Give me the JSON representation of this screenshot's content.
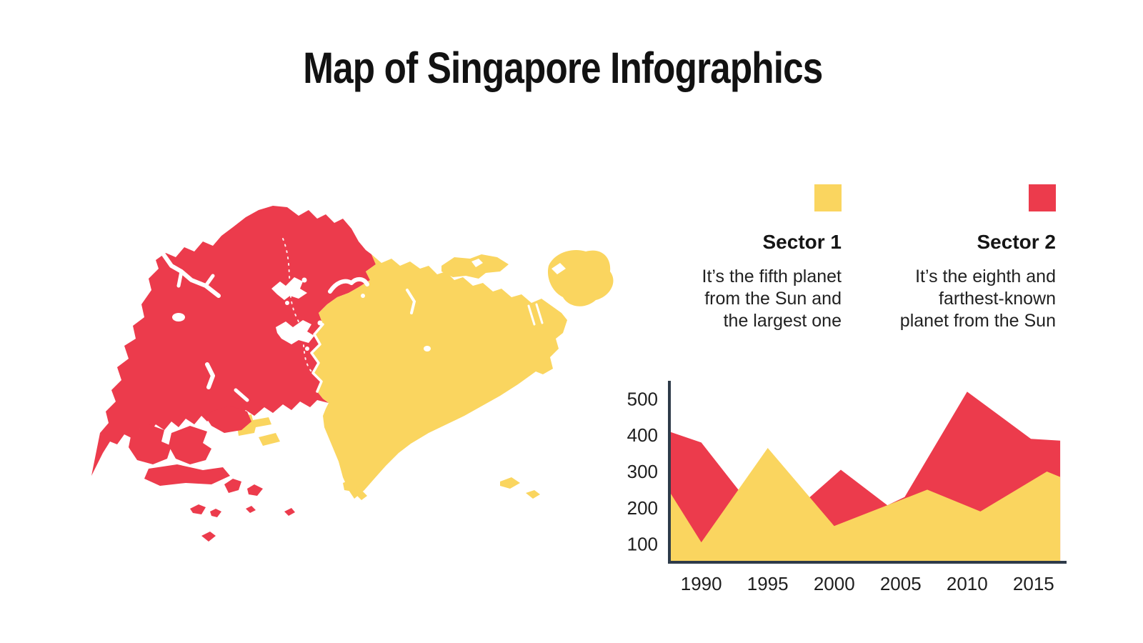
{
  "title": "Map of Singapore Infographics",
  "legend": {
    "sector1": {
      "label": "Sector 1",
      "description_lines": [
        "It’s the fifth planet",
        "from the Sun and",
        "the largest one"
      ],
      "color": "#FAD55F"
    },
    "sector2": {
      "label": "Sector 2",
      "description_lines": [
        "It’s the eighth and",
        "farthest-known",
        "planet from the Sun"
      ],
      "color": "#EC3B4C"
    }
  },
  "map": {
    "name": "Singapore map split into two sectors",
    "sector1_color": "#FAD55F",
    "sector2_color": "#EC3B4C",
    "water_color": "#FFFFFF"
  },
  "chart_data": {
    "type": "area",
    "title": "",
    "xlabel": "",
    "ylabel": "",
    "grid": false,
    "legend_position": "top-right",
    "axis_color": "#2E3B49",
    "text_color": "#1E1E1E",
    "x_axis": {
      "range": [
        1987.6,
        2017.05
      ],
      "ticks": [
        1990,
        1995,
        2000,
        2005,
        2010,
        2015
      ]
    },
    "y_axis": {
      "range": [
        50,
        550
      ],
      "ticks": [
        100,
        200,
        300,
        400,
        500
      ]
    },
    "series": [
      {
        "name": "Sector 2",
        "color": "#EC3B4C",
        "points": [
          [
            1987.6,
            410
          ],
          [
            1990,
            380
          ],
          [
            1993,
            240
          ],
          [
            1998,
            224
          ],
          [
            2000.5,
            305
          ],
          [
            2004,
            207
          ],
          [
            2005.3,
            230
          ],
          [
            2010,
            520
          ],
          [
            2014.8,
            390
          ],
          [
            2017,
            385
          ]
        ]
      },
      {
        "name": "Sector 1",
        "color": "#FAD55F",
        "points": [
          [
            1987.6,
            245
          ],
          [
            1990,
            105
          ],
          [
            1995,
            365
          ],
          [
            2000,
            150
          ],
          [
            2007,
            250
          ],
          [
            2011,
            190
          ],
          [
            2016,
            300
          ],
          [
            2017,
            285
          ]
        ]
      }
    ]
  }
}
